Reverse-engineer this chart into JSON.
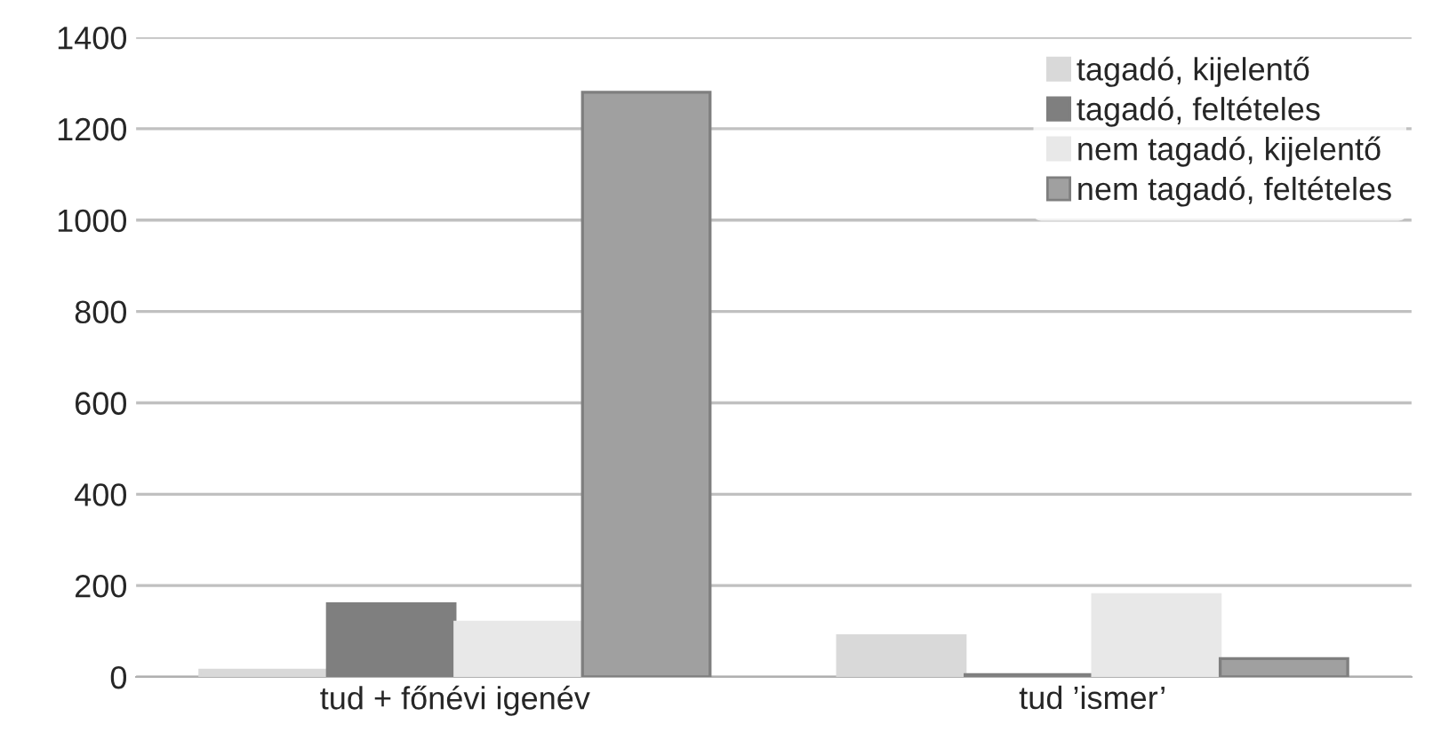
{
  "chart_data": {
    "type": "bar",
    "categories": [
      "tud + főnévi igenév",
      "tud ’ismer’"
    ],
    "series": [
      {
        "name": "tagadó, kijelentő",
        "color": "#d9d9d9",
        "values": [
          15,
          90
        ]
      },
      {
        "name": "tagadó, feltételes",
        "color": "#7f7f7f",
        "values": [
          160,
          5
        ]
      },
      {
        "name": "nem tagadó, kijelentő",
        "color": "#e8e8e8",
        "values": [
          120,
          180
        ]
      },
      {
        "name": "nem tagadó, feltételes",
        "color": "#a0a0a0",
        "values": [
          1280,
          40
        ]
      }
    ],
    "ylim": [
      0,
      1400
    ],
    "yticks": [
      0,
      200,
      400,
      600,
      800,
      1000,
      1200,
      1400
    ],
    "grid": "y",
    "legend": "top right"
  }
}
